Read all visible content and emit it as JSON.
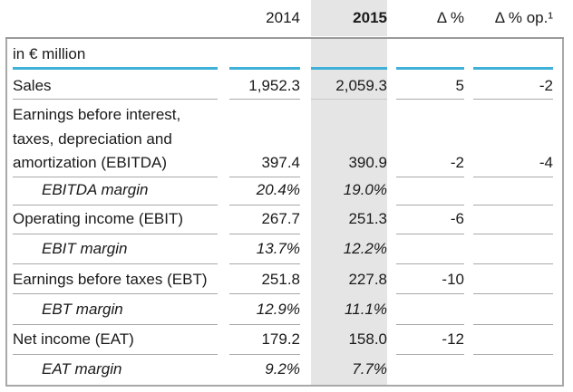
{
  "header": {
    "col_2014": "2014",
    "col_2015": "2015",
    "col_delta": "Δ %",
    "col_delta_op": "Δ % op.¹"
  },
  "unit_label": "in € million",
  "rows": [
    {
      "label": "Sales",
      "v2014": "1,952.3",
      "v2015": "2,059.3",
      "delta": "5",
      "delta_op": "-2",
      "italic": false
    },
    {
      "label_lines": [
        "Earnings before interest,",
        "taxes, depreciation and",
        "amortization (EBITDA)"
      ],
      "v2014": "397.4",
      "v2015": "390.9",
      "delta": "-2",
      "delta_op": "-4",
      "italic": false
    },
    {
      "label": "EBITDA margin",
      "v2014": "20.4%",
      "v2015": "19.0%",
      "delta": "",
      "delta_op": "",
      "italic": true
    },
    {
      "label": "Operating income (EBIT)",
      "v2014": "267.7",
      "v2015": "251.3",
      "delta": "-6",
      "delta_op": "",
      "italic": false
    },
    {
      "label": "EBIT margin",
      "v2014": "13.7%",
      "v2015": "12.2%",
      "delta": "",
      "delta_op": "",
      "italic": true
    },
    {
      "label": "Earnings before taxes (EBT)",
      "v2014": "251.8",
      "v2015": "227.8",
      "delta": "-10",
      "delta_op": "",
      "italic": false
    },
    {
      "label": "EBT margin",
      "v2014": "12.9%",
      "v2015": "11.1%",
      "delta": "",
      "delta_op": "",
      "italic": true
    },
    {
      "label": "Net income (EAT)",
      "v2014": "179.2",
      "v2015": "158.0",
      "delta": "-12",
      "delta_op": "",
      "italic": false
    },
    {
      "label": "EAT margin",
      "v2014": "9.2%",
      "v2015": "7.7%",
      "delta": "",
      "delta_op": "",
      "italic": true
    }
  ],
  "colors": {
    "accent_line": "#3fb1d8",
    "highlight_column": "#e5e5e5",
    "rule": "#a8a8a8"
  }
}
